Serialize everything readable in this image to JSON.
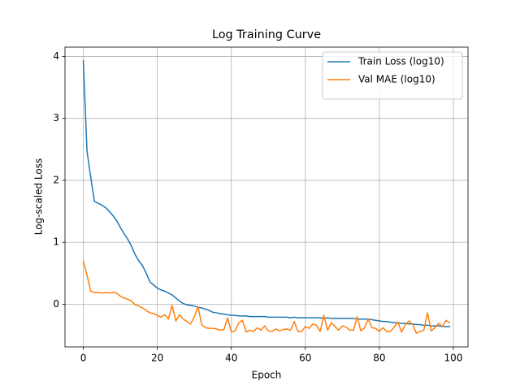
{
  "chart_data": {
    "type": "line",
    "title": "Log Training Curve",
    "x_label": "Epoch",
    "y_label": "Log-scaled Loss",
    "x": [
      0,
      1,
      2,
      3,
      4,
      5,
      6,
      7,
      8,
      9,
      10,
      11,
      12,
      13,
      14,
      15,
      16,
      17,
      18,
      19,
      20,
      21,
      22,
      23,
      24,
      25,
      26,
      27,
      28,
      29,
      30,
      31,
      32,
      33,
      34,
      35,
      36,
      37,
      38,
      39,
      40,
      41,
      42,
      43,
      44,
      45,
      46,
      47,
      48,
      49,
      50,
      51,
      52,
      53,
      54,
      55,
      56,
      57,
      58,
      59,
      60,
      61,
      62,
      63,
      64,
      65,
      66,
      67,
      68,
      69,
      70,
      71,
      72,
      73,
      74,
      75,
      76,
      77,
      78,
      79,
      80,
      81,
      82,
      83,
      84,
      85,
      86,
      87,
      88,
      89,
      90,
      91,
      92,
      93,
      94,
      95,
      96,
      97,
      98,
      99
    ],
    "series": [
      {
        "name": "Train Loss (log10)",
        "color": "#1f77b4",
        "values": [
          3.93,
          2.47,
          2.05,
          1.66,
          1.63,
          1.6,
          1.56,
          1.5,
          1.43,
          1.35,
          1.24,
          1.14,
          1.05,
          0.94,
          0.8,
          0.7,
          0.62,
          0.5,
          0.36,
          0.31,
          0.26,
          0.23,
          0.21,
          0.18,
          0.15,
          0.1,
          0.05,
          0.01,
          -0.01,
          -0.02,
          -0.03,
          -0.05,
          -0.06,
          -0.08,
          -0.1,
          -0.13,
          -0.14,
          -0.15,
          -0.16,
          -0.17,
          -0.18,
          -0.18,
          -0.19,
          -0.19,
          -0.19,
          -0.2,
          -0.2,
          -0.2,
          -0.2,
          -0.2,
          -0.21,
          -0.21,
          -0.21,
          -0.21,
          -0.21,
          -0.21,
          -0.22,
          -0.21,
          -0.22,
          -0.22,
          -0.22,
          -0.22,
          -0.22,
          -0.22,
          -0.22,
          -0.23,
          -0.22,
          -0.23,
          -0.23,
          -0.23,
          -0.23,
          -0.23,
          -0.23,
          -0.23,
          -0.24,
          -0.24,
          -0.24,
          -0.24,
          -0.25,
          -0.26,
          -0.27,
          -0.28,
          -0.28,
          -0.29,
          -0.3,
          -0.3,
          -0.31,
          -0.31,
          -0.32,
          -0.32,
          -0.33,
          -0.33,
          -0.34,
          -0.34,
          -0.35,
          -0.35,
          -0.35,
          -0.36,
          -0.36,
          -0.36
        ]
      },
      {
        "name": "Val MAE (log10)",
        "color": "#ff7f0e",
        "values": [
          0.7,
          0.47,
          0.21,
          0.19,
          0.19,
          0.18,
          0.19,
          0.18,
          0.19,
          0.18,
          0.13,
          0.1,
          0.08,
          0.05,
          -0.01,
          -0.03,
          -0.06,
          -0.1,
          -0.14,
          -0.15,
          -0.18,
          -0.21,
          -0.17,
          -0.24,
          -0.02,
          -0.27,
          -0.17,
          -0.24,
          -0.28,
          -0.32,
          -0.2,
          -0.04,
          -0.33,
          -0.38,
          -0.39,
          -0.39,
          -0.4,
          -0.42,
          -0.41,
          -0.22,
          -0.45,
          -0.43,
          -0.3,
          -0.26,
          -0.45,
          -0.42,
          -0.44,
          -0.38,
          -0.42,
          -0.35,
          -0.43,
          -0.44,
          -0.4,
          -0.43,
          -0.41,
          -0.4,
          -0.42,
          -0.28,
          -0.44,
          -0.44,
          -0.36,
          -0.39,
          -0.32,
          -0.34,
          -0.44,
          -0.18,
          -0.42,
          -0.3,
          -0.36,
          -0.42,
          -0.35,
          -0.37,
          -0.42,
          -0.42,
          -0.2,
          -0.43,
          -0.38,
          -0.24,
          -0.38,
          -0.39,
          -0.44,
          -0.38,
          -0.44,
          -0.44,
          -0.37,
          -0.29,
          -0.45,
          -0.33,
          -0.27,
          -0.33,
          -0.47,
          -0.44,
          -0.42,
          -0.14,
          -0.43,
          -0.38,
          -0.31,
          -0.36,
          -0.26,
          -0.3
        ]
      }
    ],
    "xlim": [
      -4.95,
      103.95
    ],
    "ylim": [
      -0.69,
      4.15
    ],
    "xticks": [
      0,
      20,
      40,
      60,
      80,
      100
    ],
    "yticks": [
      0,
      1,
      2,
      3,
      4
    ],
    "grid": true,
    "legend": "upper right"
  }
}
